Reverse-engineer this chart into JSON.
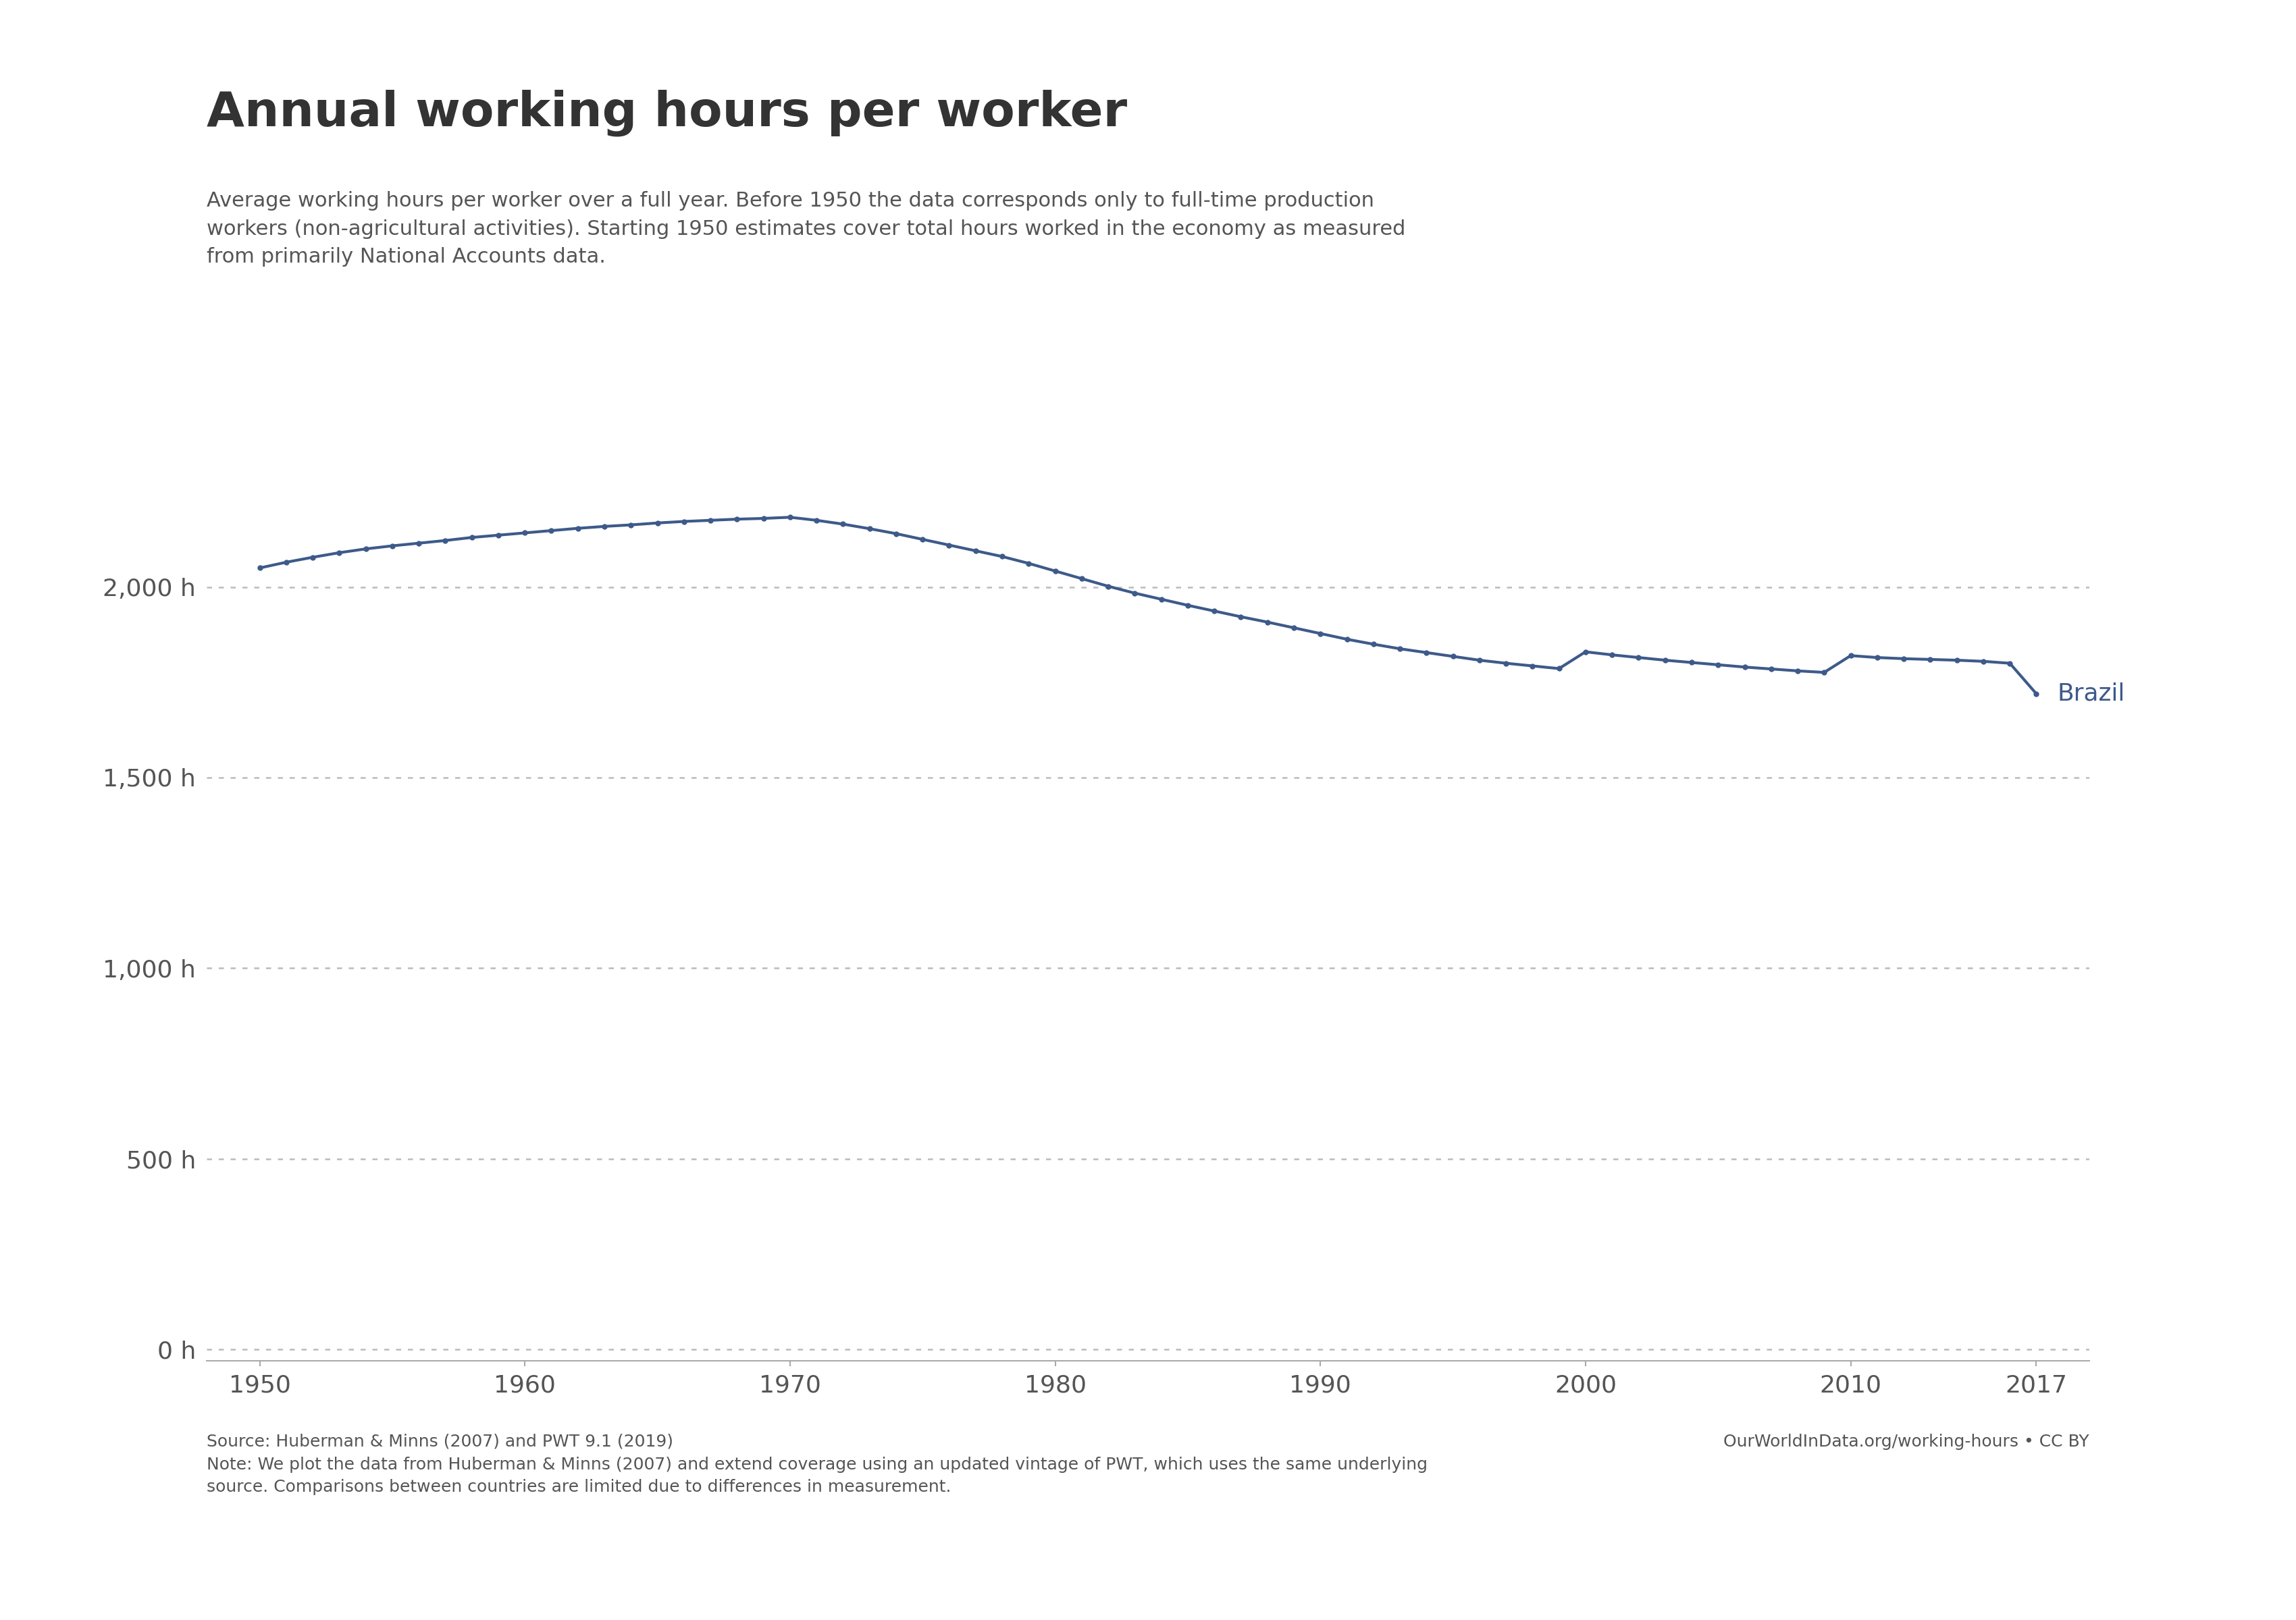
{
  "title": "Annual working hours per worker",
  "subtitle": "Average working hours per worker over a full year. Before 1950 the data corresponds only to full-time production\nworkers (non-agricultural activities). Starting 1950 estimates cover total hours worked in the economy as measured\nfrom primarily National Accounts data.",
  "footer_left": "Source: Huberman & Minns (2007) and PWT 9.1 (2019)\nNote: We plot the data from Huberman & Minns (2007) and extend coverage using an updated vintage of PWT, which uses the same underlying\nsource. Comparisons between countries are limited due to differences in measurement.",
  "footer_right": "OurWorldInData.org/working-hours • CC BY",
  "label": "Brazil",
  "line_color": "#3d5a8a",
  "background_color": "#ffffff",
  "grid_color": "#bbbbbb",
  "title_color": "#333333",
  "subtitle_color": "#555555",
  "footer_color": "#555555",
  "ytick_labels": [
    "0 h",
    "500 h",
    "1,000 h",
    "1,500 h",
    "2,000 h"
  ],
  "ytick_values": [
    0,
    500,
    1000,
    1500,
    2000
  ],
  "ylim": [
    -30,
    2350
  ],
  "xlim": [
    1948,
    2019
  ],
  "xtick_values": [
    1950,
    1960,
    1970,
    1980,
    1990,
    2000,
    2010,
    2017
  ],
  "years": [
    1950,
    1951,
    1952,
    1953,
    1954,
    1955,
    1956,
    1957,
    1958,
    1959,
    1960,
    1961,
    1962,
    1963,
    1964,
    1965,
    1966,
    1967,
    1968,
    1969,
    1970,
    1971,
    1972,
    1973,
    1974,
    1975,
    1976,
    1977,
    1978,
    1979,
    1980,
    1981,
    1982,
    1983,
    1984,
    1985,
    1986,
    1987,
    1988,
    1989,
    1990,
    1991,
    1992,
    1993,
    1994,
    1995,
    1996,
    1997,
    1998,
    1999,
    2000,
    2001,
    2002,
    2003,
    2004,
    2005,
    2006,
    2007,
    2008,
    2009,
    2010,
    2011,
    2012,
    2013,
    2014,
    2015,
    2016,
    2017
  ],
  "hours": [
    2050,
    2065,
    2078,
    2090,
    2100,
    2108,
    2115,
    2122,
    2130,
    2136,
    2142,
    2148,
    2154,
    2159,
    2163,
    2168,
    2172,
    2175,
    2178,
    2180,
    2183,
    2175,
    2165,
    2153,
    2140,
    2125,
    2110,
    2095,
    2080,
    2062,
    2042,
    2022,
    2002,
    1984,
    1968,
    1952,
    1937,
    1922,
    1908,
    1893,
    1878,
    1863,
    1850,
    1838,
    1828,
    1818,
    1808,
    1800,
    1793,
    1786,
    1830,
    1822,
    1815,
    1808,
    1802,
    1796,
    1790,
    1785,
    1780,
    1776,
    1820,
    1815,
    1812,
    1810,
    1808,
    1805,
    1800,
    1720
  ],
  "owid_logo_bg": "#c0392b",
  "owid_logo_text_color": "#ffffff",
  "owid_logo_border_color": "#1a2e4a",
  "title_fontsize": 52,
  "subtitle_fontsize": 22,
  "footer_fontsize": 18,
  "tick_fontsize": 26,
  "label_fontsize": 26
}
